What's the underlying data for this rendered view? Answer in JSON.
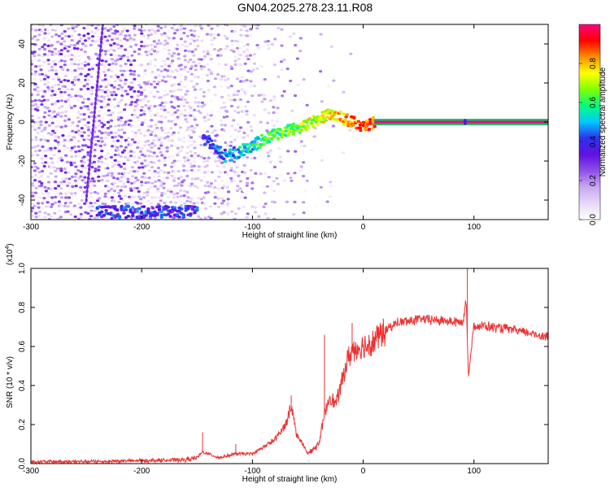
{
  "title": "GN04.2025.278.23.11.R08",
  "chart_data": [
    {
      "type": "heatmap",
      "xlabel": "Height of straight line (km)",
      "ylabel": "Frequency (Hz)",
      "xlim": [
        -300,
        167
      ],
      "ylim": [
        -50,
        50
      ],
      "x_ticks": [
        -300,
        -200,
        -100,
        0,
        100
      ],
      "y_ticks": [
        -40,
        -20,
        0,
        20,
        40
      ],
      "colorbar": {
        "label": "Normalized spectral amplitude",
        "range": [
          0,
          1
        ],
        "ticks": [
          "0.0",
          "0.2",
          "0.4",
          "0.6",
          "0.8"
        ],
        "tick_values": [
          0.0,
          0.2,
          0.4,
          0.6,
          0.8
        ],
        "colormap": [
          "#ffffff",
          "#e8d8f8",
          "#c8a8f0",
          "#9050e8",
          "#6010e0",
          "#3030f0",
          "#00c8ff",
          "#00ff80",
          "#80ff00",
          "#ffff00",
          "#ff9000",
          "#ff0000",
          "#ff0080"
        ]
      },
      "features": {
        "carrier_line": {
          "x": [
            10,
            167
          ],
          "y": 0,
          "amplitude": 1.0
        },
        "converging_trace": [
          {
            "x": -145,
            "y": -8
          },
          {
            "x": -125,
            "y": -18
          },
          {
            "x": -100,
            "y": -12
          },
          {
            "x": -80,
            "y": -6
          },
          {
            "x": -60,
            "y": -3
          },
          {
            "x": -40,
            "y": 2
          },
          {
            "x": -30,
            "y": 4
          },
          {
            "x": -15,
            "y": 1
          },
          {
            "x": 0,
            "y": -2
          },
          {
            "x": 10,
            "y": 0
          }
        ],
        "lower_band": {
          "x": [
            -240,
            -150
          ],
          "y": -46
        },
        "diagonal_streak": [
          {
            "x": -250,
            "y": -40
          },
          {
            "x": -235,
            "y": 50
          }
        ],
        "spike": {
          "x": 92,
          "y": 0
        }
      }
    },
    {
      "type": "line",
      "xlabel": "Height of straight line (km)",
      "ylabel": "SNR (10 * v/v)",
      "y_scale_label": "(x10",
      "y_scale_exponent": "4",
      "y_scale_close": ")",
      "xlim": [
        -300,
        167
      ],
      "ylim": [
        0,
        1
      ],
      "x_ticks": [
        -300,
        -200,
        -100,
        0,
        100
      ],
      "y_ticks": [
        "0.0",
        "0.2",
        "0.4",
        "0.6",
        "0.8",
        "1.0"
      ],
      "y_tick_values": [
        0.0,
        0.2,
        0.4,
        0.6,
        0.8,
        1.0
      ],
      "series": [
        {
          "color": "#ee3030",
          "envelope": [
            {
              "x": -300,
              "y": 0.01
            },
            {
              "x": -250,
              "y": 0.01
            },
            {
              "x": -200,
              "y": 0.015
            },
            {
              "x": -160,
              "y": 0.02
            },
            {
              "x": -150,
              "y": 0.03
            },
            {
              "x": -145,
              "y": 0.06
            },
            {
              "x": -130,
              "y": 0.03
            },
            {
              "x": -115,
              "y": 0.05
            },
            {
              "x": -100,
              "y": 0.05
            },
            {
              "x": -80,
              "y": 0.12
            },
            {
              "x": -70,
              "y": 0.2
            },
            {
              "x": -65,
              "y": 0.3
            },
            {
              "x": -60,
              "y": 0.15
            },
            {
              "x": -50,
              "y": 0.05
            },
            {
              "x": -40,
              "y": 0.1
            },
            {
              "x": -35,
              "y": 0.25
            },
            {
              "x": -30,
              "y": 0.35
            },
            {
              "x": -25,
              "y": 0.3
            },
            {
              "x": -20,
              "y": 0.4
            },
            {
              "x": -15,
              "y": 0.52
            },
            {
              "x": -10,
              "y": 0.58
            },
            {
              "x": 0,
              "y": 0.6
            },
            {
              "x": 10,
              "y": 0.63
            },
            {
              "x": 20,
              "y": 0.68
            },
            {
              "x": 30,
              "y": 0.72
            },
            {
              "x": 50,
              "y": 0.74
            },
            {
              "x": 80,
              "y": 0.73
            },
            {
              "x": 90,
              "y": 0.72
            },
            {
              "x": 93,
              "y": 0.85
            },
            {
              "x": 95,
              "y": 0.45
            },
            {
              "x": 100,
              "y": 0.71
            },
            {
              "x": 130,
              "y": 0.69
            },
            {
              "x": 167,
              "y": 0.65
            }
          ],
          "spikes": [
            {
              "x": -145,
              "y": 0.16
            },
            {
              "x": -115,
              "y": 0.1
            },
            {
              "x": -65,
              "y": 0.35
            },
            {
              "x": -35,
              "y": 0.66
            },
            {
              "x": -10,
              "y": 0.72
            },
            {
              "x": 94,
              "y": 1.0
            }
          ]
        }
      ]
    }
  ]
}
